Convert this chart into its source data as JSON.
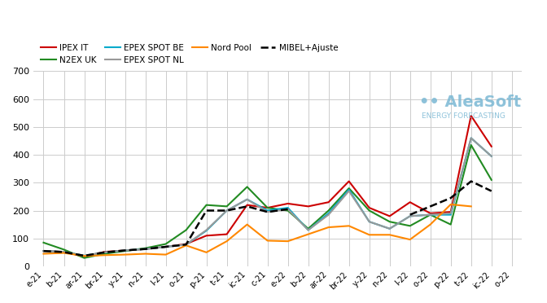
{
  "title": "",
  "xlabel": "",
  "ylabel": "",
  "ylim": [
    0,
    700
  ],
  "yticks": [
    0,
    100,
    200,
    300,
    400,
    500,
    600,
    700
  ],
  "x_labels": [
    "e-21",
    "b-21",
    "ar-21",
    "br-21",
    "y-21",
    "n-21",
    "l-21",
    "o-21",
    "p-21",
    "t-21",
    "ic-21",
    "c-21",
    "e-22",
    "b-22",
    "ar-22",
    "br-22",
    "y-22",
    "n-22",
    "l-22",
    "o-22",
    "p-22",
    "t-22",
    "ic-22",
    "o-22"
  ],
  "series": {
    "IPEX IT": {
      "color": "#cc0000",
      "linestyle": "-",
      "linewidth": 1.5,
      "values": [
        55,
        52,
        35,
        52,
        57,
        62,
        70,
        80,
        110,
        115,
        220,
        210,
        225,
        215,
        230,
        305,
        210,
        180,
        230,
        190,
        195,
        540,
        430,
        null
      ]
    },
    "N2EX UK": {
      "color": "#228B22",
      "linestyle": "-",
      "linewidth": 1.5,
      "values": [
        85,
        60,
        30,
        45,
        55,
        65,
        80,
        130,
        220,
        215,
        285,
        210,
        200,
        135,
        200,
        280,
        200,
        160,
        145,
        185,
        150,
        435,
        310,
        null
      ]
    },
    "EPEX SPOT BE": {
      "color": "#00aacc",
      "linestyle": "-",
      "linewidth": 1.5,
      "values": [
        55,
        52,
        38,
        50,
        57,
        62,
        70,
        78,
        128,
        200,
        240,
        200,
        210,
        130,
        190,
        275,
        160,
        135,
        180,
        185,
        185,
        460,
        395,
        null
      ]
    },
    "EPEX SPOT NL": {
      "color": "#999999",
      "linestyle": "-",
      "linewidth": 1.5,
      "values": [
        55,
        52,
        38,
        50,
        57,
        62,
        70,
        78,
        130,
        200,
        240,
        195,
        205,
        130,
        185,
        270,
        160,
        135,
        180,
        185,
        190,
        460,
        395,
        null
      ]
    },
    "Nord Pool": {
      "color": "#ff8800",
      "linestyle": "-",
      "linewidth": 1.5,
      "values": [
        45,
        48,
        37,
        40,
        42,
        45,
        42,
        75,
        50,
        90,
        150,
        92,
        90,
        115,
        140,
        145,
        113,
        113,
        96,
        150,
        222,
        215,
        null,
        null
      ]
    },
    "MIBEL+Ajuste": {
      "color": "#000000",
      "linestyle": "--",
      "linewidth": 1.8,
      "values": [
        55,
        51,
        38,
        50,
        57,
        62,
        70,
        78,
        200,
        200,
        215,
        195,
        205,
        null,
        null,
        null,
        null,
        null,
        185,
        215,
        245,
        305,
        270,
        null
      ]
    }
  },
  "background_color": "#ffffff",
  "grid_color": "#cccccc",
  "watermark_text": "•• AleaSoft",
  "watermark_sub": "ENERGY FORECASTING",
  "watermark_color": "#7ab8d4"
}
